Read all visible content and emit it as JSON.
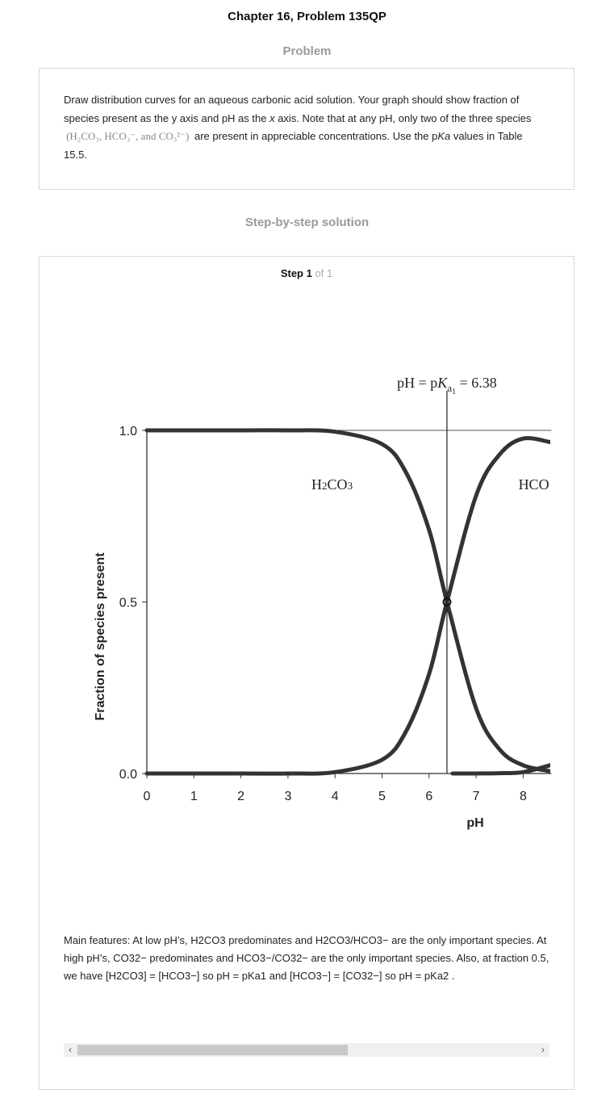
{
  "page": {
    "title": "Chapter 16, Problem 135QP",
    "problem_heading": "Problem",
    "solution_heading": "Step-by-step solution"
  },
  "problem": {
    "text_1": "Draw distribution curves for an aqueous carbonic acid solution. Your graph should show fraction of species present as the y axis and pH as the ",
    "x_word": "x",
    "text_2": " axis. Note that at any pH, only two of the three species ",
    "species": "(H₂CO₃, HCO₃⁻, and CO₃²⁻)",
    "text_3": " are present in appreciable concentrations. Use the p",
    "ka_word": "Ka",
    "text_4": " values in Table 15.5."
  },
  "step": {
    "label": "Step",
    "number": "1",
    "of": "of 1"
  },
  "chart_data": {
    "type": "line",
    "xlabel": "pH",
    "ylabel": "Fraction of species present",
    "xlim": [
      0,
      8.6
    ],
    "ylim": [
      0,
      1
    ],
    "x_ticks": [
      "0",
      "1",
      "2",
      "3",
      "4",
      "5",
      "6",
      "7",
      "8"
    ],
    "y_ticks": [
      "0.0",
      "0.5",
      "1.0"
    ],
    "pka1": 6.38,
    "pka1_annotation": {
      "prefix": "pH = p",
      "k": "K",
      "sub": "a",
      "subsub": "1",
      "suffix": " = 6.38"
    },
    "series": [
      {
        "name": "H₂CO₃",
        "label": "H2CO3",
        "x": [
          0,
          2,
          3,
          4,
          5,
          5.5,
          6,
          6.38,
          7,
          7.5,
          8,
          8.6
        ],
        "y": [
          1.0,
          1.0,
          1.0,
          0.996,
          0.96,
          0.88,
          0.71,
          0.5,
          0.19,
          0.07,
          0.024,
          0.006
        ]
      },
      {
        "name": "HCO₃⁻",
        "label": "HCO",
        "x": [
          0,
          2,
          3,
          4,
          5,
          5.5,
          6,
          6.38,
          7,
          7.5,
          8,
          8.6
        ],
        "y": [
          0.0,
          0.0,
          0.0,
          0.004,
          0.04,
          0.12,
          0.29,
          0.5,
          0.81,
          0.93,
          0.976,
          0.965
        ]
      },
      {
        "name": "CO₃²⁻",
        "x": [
          6.5,
          7,
          7.5,
          8,
          8.6
        ],
        "y": [
          0.0,
          0.0,
          0.001,
          0.004,
          0.025
        ]
      }
    ]
  },
  "features": {
    "text": "Main features: At low pH’s, H2CO3 predominates and H2CO3/HCO3− are the only important species. At high pH’s, CO32− predominates and HCO3−/CO32− are the only important species. Also, at fraction 0.5, we have [H2CO3] = [HCO3−] so pH = pKa1 and [HCO3−] = [CO32−] so pH = pKa2 ."
  },
  "scrollbar": {
    "left_arrow": "‹",
    "right_arrow": "›"
  }
}
